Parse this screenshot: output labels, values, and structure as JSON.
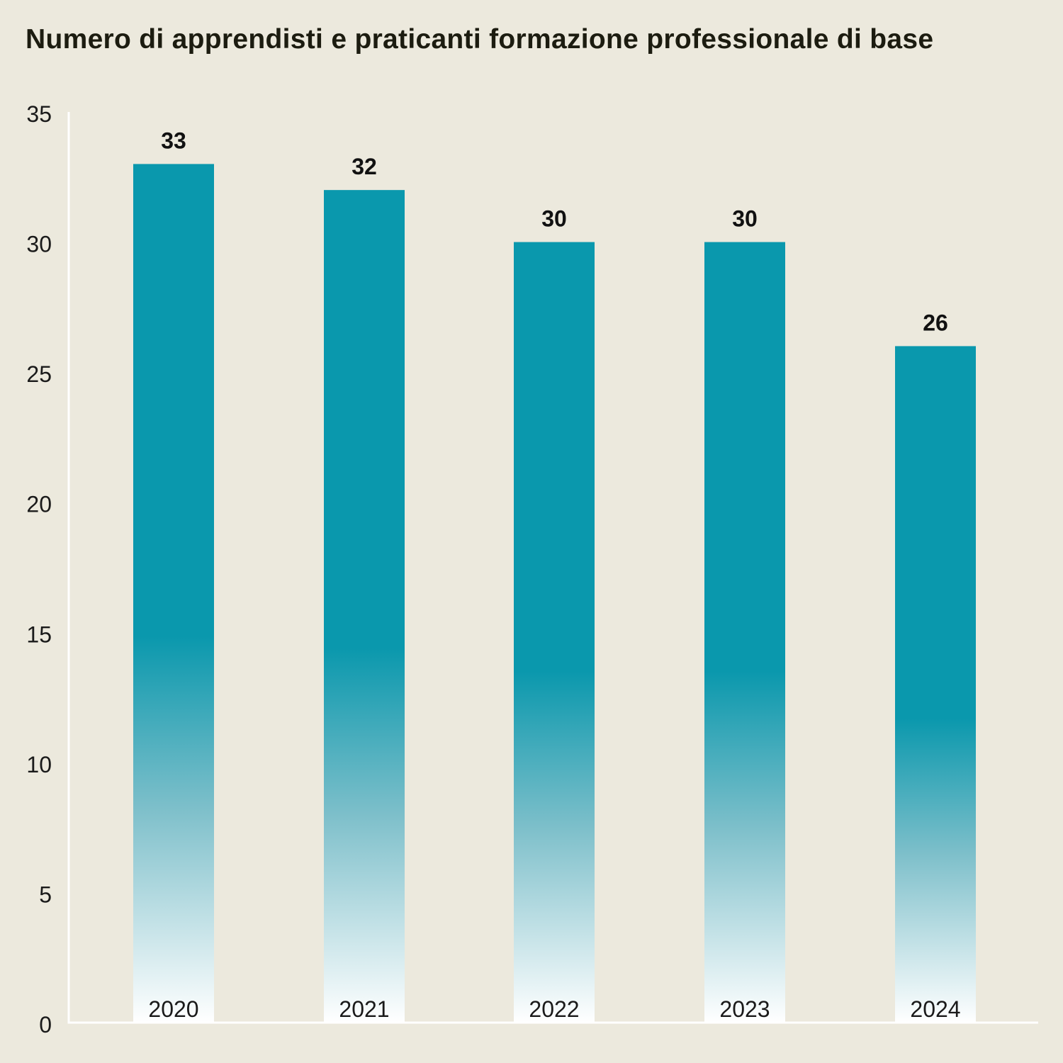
{
  "chart_data": {
    "type": "bar",
    "title": "Numero di apprendisti e praticanti formazione professionale di base",
    "categories": [
      "2020",
      "2021",
      "2022",
      "2023",
      "2024"
    ],
    "values": [
      33,
      32,
      30,
      30,
      26
    ],
    "data_labels": [
      "33",
      "32",
      "30",
      "30",
      "26"
    ],
    "xlabel": "",
    "ylabel": "",
    "ylim": [
      0,
      35
    ],
    "yticks": [
      "0",
      "5",
      "10",
      "15",
      "20",
      "25",
      "30",
      "35"
    ],
    "grid": false,
    "bar_color": "#0a98ad",
    "bar_gradient_end": "#ffffff",
    "background": "#ece9dd",
    "axis_color": "#ffffff"
  }
}
